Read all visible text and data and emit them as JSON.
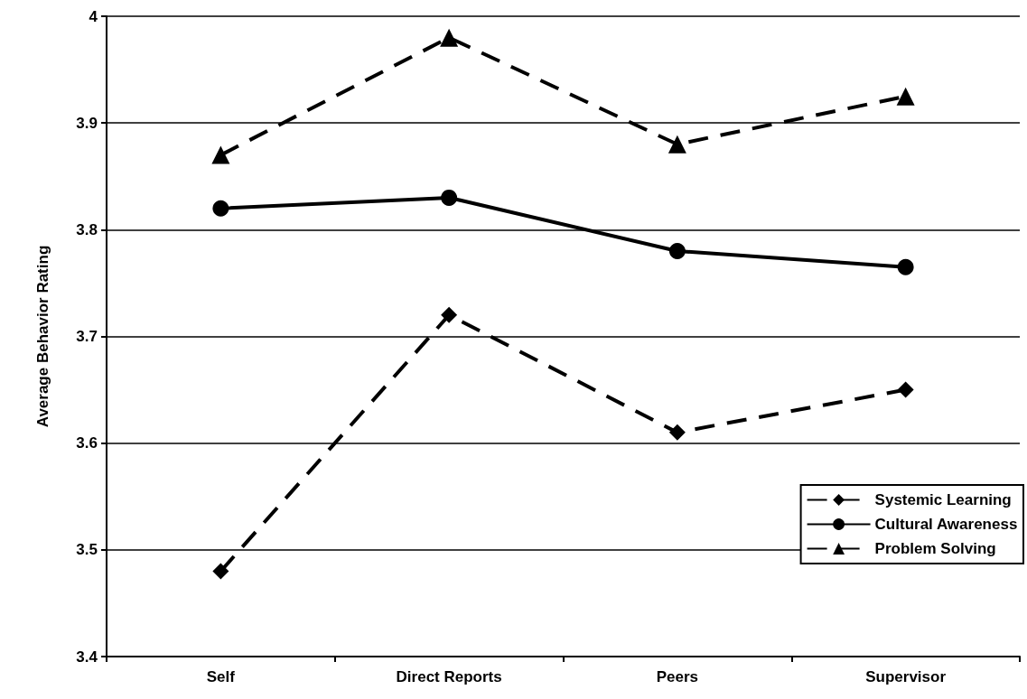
{
  "chart_data": {
    "type": "line",
    "ylabel": "Average Behavior Rating",
    "categories": [
      "Self",
      "Direct Reports",
      "Peers",
      "Supervisor"
    ],
    "series": [
      {
        "name": "Systemic Learning",
        "color": "#000000",
        "marker": "diamond",
        "line_style": "dashed",
        "values": [
          3.48,
          3.72,
          3.61,
          3.65
        ]
      },
      {
        "name": "Cultural Awareness",
        "color": "#000000",
        "marker": "circle",
        "line_style": "solid",
        "values": [
          3.82,
          3.83,
          3.78,
          3.765
        ]
      },
      {
        "name": "Problem Solving",
        "color": "#000000",
        "marker": "triangle",
        "line_style": "dashed",
        "values": [
          3.87,
          3.98,
          3.88,
          3.925
        ]
      }
    ],
    "ylim": [
      3.4,
      4
    ],
    "yticks": [
      3.4,
      3.5,
      3.6,
      3.7,
      3.8,
      3.9,
      4
    ],
    "grid": "y",
    "legend": "bottom right"
  }
}
